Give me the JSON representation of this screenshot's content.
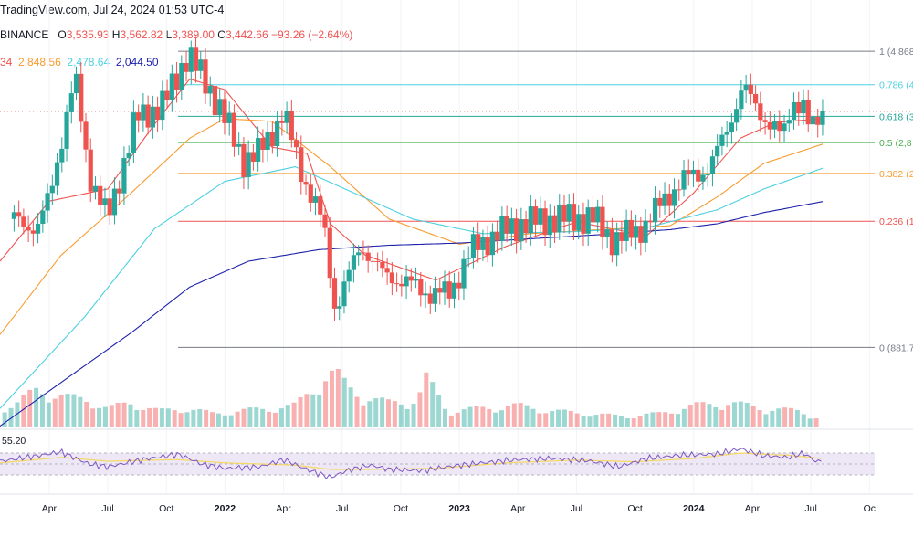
{
  "header": {
    "source": "TradingView.com, Jul 24, 2024 01:53 UTC-4",
    "exchange": "BINANCE",
    "ohlc": {
      "o_label": "O",
      "o": "3,535.93",
      "h_label": "H",
      "h": "3,562.82",
      "l_label": "L",
      "l": "3,389.00",
      "c_label": "C",
      "c": "3,442.66",
      "change": "−93.26 (−2.64%)"
    },
    "ma_values": [
      {
        "text": "34",
        "color": "#ef5350"
      },
      {
        "text": "2,848.56",
        "color": "#f89c2f"
      },
      {
        "text": "2,478.64",
        "color": "#4dd0e1"
      },
      {
        "text": "2,044.50",
        "color": "#1e22aa"
      }
    ],
    "rsi_value": "55.20"
  },
  "colors": {
    "up": "#26a69a",
    "down": "#ef5350",
    "ma_fast": "#ef5350",
    "ma_mid": "#f89c2f",
    "ma_slow": "#4dd0e1",
    "ma_long": "#1e22aa",
    "rsi": "#7e57c2",
    "rsi_ma": "#f6d860",
    "rsi_band": "#ede7f6"
  },
  "fib_levels": [
    {
      "label": "1 (4,868",
      "value": 4868,
      "color": "#787b86"
    },
    {
      "label": "0.786 (4",
      "value": 4014,
      "color": "#4dd0e1"
    },
    {
      "label": "0.618 (3",
      "value": 3344,
      "color": "#26a69a"
    },
    {
      "label": "0.5 (2,8",
      "value": 2875,
      "color": "#4caf50"
    },
    {
      "label": "0.382 (2",
      "value": 2406,
      "color": "#f89c2f"
    },
    {
      "label": "0.236 (1",
      "value": 1826,
      "color": "#ef5350"
    },
    {
      "label": "0 (881.7",
      "value": 882,
      "color": "#787b86"
    }
  ],
  "x_axis": {
    "ticks": [
      {
        "label": "Apr",
        "x": 2021.25,
        "bold": false
      },
      {
        "label": "Jul",
        "x": 2021.5,
        "bold": false
      },
      {
        "label": "Oct",
        "x": 2021.75,
        "bold": false
      },
      {
        "label": "2022",
        "x": 2022.0,
        "bold": true
      },
      {
        "label": "Apr",
        "x": 2022.25,
        "bold": false
      },
      {
        "label": "Jul",
        "x": 2022.5,
        "bold": false
      },
      {
        "label": "Oct",
        "x": 2022.75,
        "bold": false
      },
      {
        "label": "2023",
        "x": 2023.0,
        "bold": true
      },
      {
        "label": "Apr",
        "x": 2023.25,
        "bold": false
      },
      {
        "label": "Jul",
        "x": 2023.5,
        "bold": false
      },
      {
        "label": "Oct",
        "x": 2023.75,
        "bold": false
      },
      {
        "label": "2024",
        "x": 2024.0,
        "bold": true
      },
      {
        "label": "Apr",
        "x": 2024.25,
        "bold": false
      },
      {
        "label": "Jul",
        "x": 2024.5,
        "bold": false
      },
      {
        "label": "Oc",
        "x": 2024.75,
        "bold": false
      }
    ]
  },
  "chart_data": {
    "type": "candlestick",
    "symbol": "ETHUSDT",
    "interval": "1W",
    "y_scale": "log",
    "ylim": [
      550,
      5300
    ],
    "xlim": [
      2021.04,
      2024.78
    ],
    "candles_points": [
      [
        2021.1,
        1850
      ],
      [
        2021.2,
        1750
      ],
      [
        2021.25,
        2100
      ],
      [
        2021.36,
        4200
      ],
      [
        2021.42,
        2400
      ],
      [
        2021.5,
        1850
      ],
      [
        2021.62,
        3300
      ],
      [
        2021.74,
        3600
      ],
      [
        2021.84,
        4800
      ],
      [
        2021.96,
        3700
      ],
      [
        2022.08,
        2600
      ],
      [
        2022.14,
        2700
      ],
      [
        2022.25,
        3400
      ],
      [
        2022.34,
        2300
      ],
      [
        2022.42,
        1800
      ],
      [
        2022.47,
        1100
      ],
      [
        2022.58,
        1600
      ],
      [
        2022.67,
        1350
      ],
      [
        2022.78,
        1280
      ],
      [
        2022.88,
        1200
      ],
      [
        2022.96,
        1210
      ],
      [
        2023.05,
        1550
      ],
      [
        2023.12,
        1650
      ],
      [
        2023.25,
        1800
      ],
      [
        2023.37,
        1850
      ],
      [
        2023.5,
        1870
      ],
      [
        2023.58,
        1850
      ],
      [
        2023.66,
        1630
      ],
      [
        2023.79,
        1780
      ],
      [
        2023.88,
        2100
      ],
      [
        2023.97,
        2350
      ],
      [
        2024.07,
        2480
      ],
      [
        2024.14,
        3100
      ],
      [
        2024.21,
        3950
      ],
      [
        2024.26,
        3600
      ],
      [
        2024.33,
        3150
      ],
      [
        2024.38,
        2980
      ],
      [
        2024.42,
        3700
      ],
      [
        2024.47,
        3500
      ],
      [
        2024.5,
        3000
      ],
      [
        2024.52,
        3300
      ],
      [
        2024.55,
        3443
      ]
    ],
    "moving_averages_points": {
      "ma_fast": [
        [
          2021.04,
          1450
        ],
        [
          2021.25,
          2050
        ],
        [
          2021.5,
          2200
        ],
        [
          2021.7,
          3200
        ],
        [
          2021.85,
          4150
        ],
        [
          2022.0,
          3900
        ],
        [
          2022.2,
          2800
        ],
        [
          2022.35,
          2700
        ],
        [
          2022.45,
          1800
        ],
        [
          2022.6,
          1500
        ],
        [
          2022.9,
          1300
        ],
        [
          2023.2,
          1580
        ],
        [
          2023.5,
          1820
        ],
        [
          2023.8,
          1680
        ],
        [
          2024.0,
          2150
        ],
        [
          2024.2,
          2950
        ],
        [
          2024.35,
          3230
        ],
        [
          2024.55,
          3300
        ]
      ],
      "ma_mid": [
        [
          2021.04,
          950
        ],
        [
          2021.3,
          1500
        ],
        [
          2021.6,
          2150
        ],
        [
          2021.85,
          2950
        ],
        [
          2022.0,
          3300
        ],
        [
          2022.2,
          3250
        ],
        [
          2022.45,
          2500
        ],
        [
          2022.7,
          1850
        ],
        [
          2023.0,
          1600
        ],
        [
          2023.3,
          1700
        ],
        [
          2023.6,
          1740
        ],
        [
          2023.9,
          1780
        ],
        [
          2024.1,
          2100
        ],
        [
          2024.3,
          2550
        ],
        [
          2024.55,
          2849
        ]
      ],
      "ma_slow": [
        [
          2021.04,
          620
        ],
        [
          2021.4,
          1050
        ],
        [
          2021.7,
          1750
        ],
        [
          2022.0,
          2300
        ],
        [
          2022.3,
          2500
        ],
        [
          2022.55,
          2150
        ],
        [
          2022.8,
          1850
        ],
        [
          2023.1,
          1700
        ],
        [
          2023.5,
          1720
        ],
        [
          2023.8,
          1760
        ],
        [
          2024.1,
          1950
        ],
        [
          2024.3,
          2200
        ],
        [
          2024.55,
          2479
        ]
      ],
      "ma_long": [
        [
          2021.04,
          560
        ],
        [
          2021.3,
          720
        ],
        [
          2021.6,
          960
        ],
        [
          2021.85,
          1250
        ],
        [
          2022.1,
          1450
        ],
        [
          2022.4,
          1550
        ],
        [
          2022.7,
          1590
        ],
        [
          2023.0,
          1610
        ],
        [
          2023.3,
          1650
        ],
        [
          2023.6,
          1690
        ],
        [
          2023.9,
          1740
        ],
        [
          2024.1,
          1800
        ],
        [
          2024.3,
          1920
        ],
        [
          2024.55,
          2045
        ]
      ]
    },
    "volume_points": [
      [
        2021.1,
        0.4
      ],
      [
        2021.2,
        0.7
      ],
      [
        2021.32,
        0.55
      ],
      [
        2021.42,
        0.5
      ],
      [
        2021.5,
        0.35
      ],
      [
        2021.6,
        0.45
      ],
      [
        2021.72,
        0.3
      ],
      [
        2021.84,
        0.35
      ],
      [
        2021.95,
        0.25
      ],
      [
        2022.05,
        0.3
      ],
      [
        2022.2,
        0.35
      ],
      [
        2022.3,
        0.4
      ],
      [
        2022.42,
        0.9
      ],
      [
        2022.47,
        1.0
      ],
      [
        2022.52,
        0.75
      ],
      [
        2022.6,
        0.55
      ],
      [
        2022.7,
        0.45
      ],
      [
        2022.82,
        0.5
      ],
      [
        2022.86,
        0.9
      ],
      [
        2022.95,
        0.3
      ],
      [
        2023.1,
        0.35
      ],
      [
        2023.25,
        0.4
      ],
      [
        2023.4,
        0.3
      ],
      [
        2023.55,
        0.25
      ],
      [
        2023.7,
        0.2
      ],
      [
        2023.85,
        0.25
      ],
      [
        2024.0,
        0.4
      ],
      [
        2024.15,
        0.45
      ],
      [
        2024.3,
        0.35
      ],
      [
        2024.45,
        0.3
      ],
      [
        2024.55,
        0.15
      ]
    ],
    "rsi": {
      "upper": 70,
      "lower": 30,
      "points": [
        [
          2021.04,
          55
        ],
        [
          2021.2,
          65
        ],
        [
          2021.3,
          72
        ],
        [
          2021.42,
          50
        ],
        [
          2021.5,
          45
        ],
        [
          2021.65,
          58
        ],
        [
          2021.8,
          68
        ],
        [
          2021.9,
          50
        ],
        [
          2022.0,
          42
        ],
        [
          2022.15,
          45
        ],
        [
          2022.25,
          58
        ],
        [
          2022.35,
          40
        ],
        [
          2022.45,
          25
        ],
        [
          2022.52,
          38
        ],
        [
          2022.62,
          48
        ],
        [
          2022.7,
          40
        ],
        [
          2022.85,
          38
        ],
        [
          2022.95,
          45
        ],
        [
          2023.1,
          52
        ],
        [
          2023.25,
          58
        ],
        [
          2023.4,
          60
        ],
        [
          2023.55,
          56
        ],
        [
          2023.68,
          45
        ],
        [
          2023.8,
          60
        ],
        [
          2023.95,
          66
        ],
        [
          2024.1,
          68
        ],
        [
          2024.2,
          78
        ],
        [
          2024.3,
          65
        ],
        [
          2024.4,
          62
        ],
        [
          2024.47,
          70
        ],
        [
          2024.52,
          55
        ],
        [
          2024.55,
          55
        ]
      ],
      "ma_points": [
        [
          2021.04,
          52
        ],
        [
          2021.3,
          62
        ],
        [
          2021.5,
          55
        ],
        [
          2021.8,
          58
        ],
        [
          2022.0,
          52
        ],
        [
          2022.3,
          48
        ],
        [
          2022.45,
          40
        ],
        [
          2022.6,
          40
        ],
        [
          2022.9,
          42
        ],
        [
          2023.2,
          52
        ],
        [
          2023.5,
          57
        ],
        [
          2023.75,
          54
        ],
        [
          2024.0,
          60
        ],
        [
          2024.2,
          70
        ],
        [
          2024.4,
          66
        ],
        [
          2024.55,
          60
        ]
      ]
    }
  }
}
